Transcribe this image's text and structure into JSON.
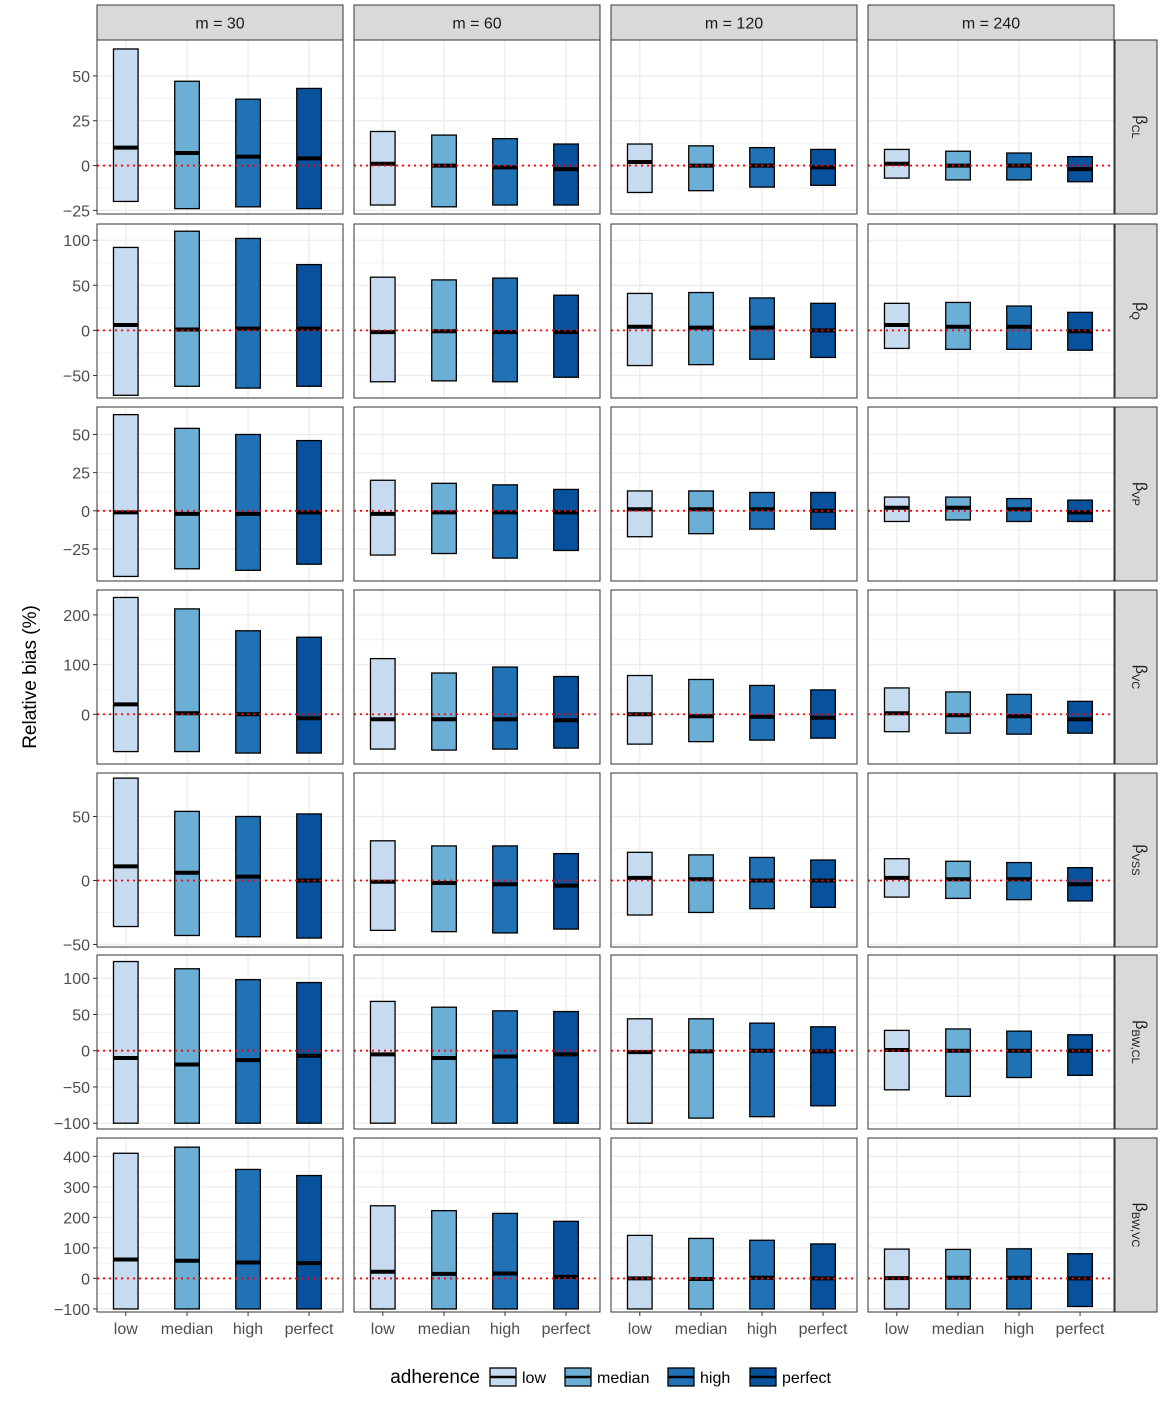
{
  "chart_data": {
    "type": "bar",
    "description_kind": "faceted floating-bar (range) chart with median line",
    "ylabel": "Relative bias (%)",
    "xlabel": "",
    "categories": [
      "low",
      "median",
      "high",
      "perfect"
    ],
    "columns": [
      "m = 30",
      "m = 60",
      "m = 120",
      "m = 240"
    ],
    "reference_line": 0,
    "legend": {
      "title": "adherence",
      "position": "bottom",
      "items": [
        "low",
        "median",
        "high",
        "perfect"
      ]
    },
    "colors": {
      "low": "#c6dbef",
      "median": "#6baed6",
      "high": "#2171b5",
      "perfect": "#08519c",
      "reference": "#ff0000"
    },
    "rows": [
      {
        "label_base": "β",
        "label_sub": "CL",
        "ylim": [
          -27,
          70
        ],
        "yticks": [
          -25,
          0,
          25,
          50
        ],
        "panels": [
          [
            [
              -20,
              10,
              65
            ],
            [
              -24,
              7,
              47
            ],
            [
              -23,
              5,
              37
            ],
            [
              -24,
              4,
              43
            ]
          ],
          [
            [
              -22,
              1,
              19
            ],
            [
              -23,
              0,
              17
            ],
            [
              -22,
              -1,
              15
            ],
            [
              -22,
              -2,
              12
            ]
          ],
          [
            [
              -15,
              2,
              12
            ],
            [
              -14,
              0,
              11
            ],
            [
              -12,
              0,
              10
            ],
            [
              -11,
              -1,
              9
            ]
          ],
          [
            [
              -7,
              1,
              9
            ],
            [
              -8,
              0,
              8
            ],
            [
              -8,
              0,
              7
            ],
            [
              -9,
              -2,
              5
            ]
          ]
        ]
      },
      {
        "label_base": "β",
        "label_sub": "Q",
        "ylim": [
          -75,
          118
        ],
        "yticks": [
          -50,
          0,
          50,
          100
        ],
        "panels": [
          [
            [
              -72,
              6,
              92
            ],
            [
              -62,
              1,
              110
            ],
            [
              -64,
              2,
              102
            ],
            [
              -62,
              2,
              73
            ]
          ],
          [
            [
              -57,
              -2,
              59
            ],
            [
              -56,
              -1,
              56
            ],
            [
              -57,
              -2,
              58
            ],
            [
              -52,
              -2,
              39
            ]
          ],
          [
            [
              -39,
              4,
              41
            ],
            [
              -38,
              3,
              42
            ],
            [
              -32,
              3,
              36
            ],
            [
              -30,
              0,
              30
            ]
          ],
          [
            [
              -20,
              6,
              30
            ],
            [
              -21,
              4,
              31
            ],
            [
              -21,
              4,
              27
            ],
            [
              -22,
              -1,
              20
            ]
          ]
        ]
      },
      {
        "label_base": "β",
        "label_sub": "VP",
        "ylim": [
          -46,
          68
        ],
        "yticks": [
          -25,
          0,
          25,
          50
        ],
        "panels": [
          [
            [
              -43,
              -1,
              63
            ],
            [
              -38,
              -2,
              54
            ],
            [
              -39,
              -2,
              50
            ],
            [
              -35,
              -1,
              46
            ]
          ],
          [
            [
              -29,
              -2,
              20
            ],
            [
              -28,
              -1,
              18
            ],
            [
              -31,
              -1,
              17
            ],
            [
              -26,
              -1,
              14
            ]
          ],
          [
            [
              -17,
              1,
              13
            ],
            [
              -15,
              1,
              13
            ],
            [
              -12,
              1,
              12
            ],
            [
              -12,
              0,
              12
            ]
          ],
          [
            [
              -7,
              2,
              9
            ],
            [
              -6,
              2,
              9
            ],
            [
              -7,
              1,
              8
            ],
            [
              -7,
              -1,
              7
            ]
          ]
        ]
      },
      {
        "label_base": "β",
        "label_sub": "VC",
        "ylim": [
          -100,
          250
        ],
        "yticks": [
          0,
          100,
          200
        ],
        "panels": [
          [
            [
              -75,
              20,
              235
            ],
            [
              -75,
              2,
              212
            ],
            [
              -78,
              0,
              168
            ],
            [
              -78,
              -8,
              155
            ]
          ],
          [
            [
              -70,
              -10,
              112
            ],
            [
              -72,
              -10,
              83
            ],
            [
              -70,
              -10,
              95
            ],
            [
              -68,
              -12,
              76
            ]
          ],
          [
            [
              -60,
              0,
              78
            ],
            [
              -55,
              -4,
              70
            ],
            [
              -52,
              -5,
              58
            ],
            [
              -48,
              -7,
              49
            ]
          ],
          [
            [
              -35,
              2,
              53
            ],
            [
              -38,
              -2,
              45
            ],
            [
              -40,
              -4,
              40
            ],
            [
              -38,
              -10,
              26
            ]
          ]
        ]
      },
      {
        "label_base": "β",
        "label_sub": "VSS",
        "ylim": [
          -52,
          84
        ],
        "yticks": [
          -50,
          0,
          50
        ],
        "panels": [
          [
            [
              -36,
              11,
              80
            ],
            [
              -43,
              6,
              54
            ],
            [
              -44,
              3,
              50
            ],
            [
              -45,
              0,
              52
            ]
          ],
          [
            [
              -39,
              -1,
              31
            ],
            [
              -40,
              -2,
              27
            ],
            [
              -41,
              -3,
              27
            ],
            [
              -38,
              -4,
              21
            ]
          ],
          [
            [
              -27,
              2,
              22
            ],
            [
              -25,
              1,
              20
            ],
            [
              -22,
              0,
              18
            ],
            [
              -21,
              0,
              16
            ]
          ],
          [
            [
              -13,
              2,
              17
            ],
            [
              -14,
              1,
              15
            ],
            [
              -15,
              1,
              14
            ],
            [
              -16,
              -3,
              10
            ]
          ]
        ]
      },
      {
        "label_base": "β",
        "label_sub": "BW,CL",
        "ylim": [
          -108,
          132
        ],
        "yticks": [
          -100,
          -50,
          0,
          50,
          100
        ],
        "panels": [
          [
            [
              -100,
              -10,
              123
            ],
            [
              -100,
              -19,
              113
            ],
            [
              -100,
              -13,
              98
            ],
            [
              -100,
              -7,
              94
            ]
          ],
          [
            [
              -100,
              -5,
              68
            ],
            [
              -100,
              -10,
              60
            ],
            [
              -100,
              -8,
              55
            ],
            [
              -100,
              -5,
              54
            ]
          ],
          [
            [
              -100,
              -2,
              44
            ],
            [
              -93,
              -1,
              44
            ],
            [
              -91,
              0,
              38
            ],
            [
              -76,
              -1,
              33
            ]
          ],
          [
            [
              -54,
              1,
              28
            ],
            [
              -63,
              0,
              30
            ],
            [
              -37,
              0,
              27
            ],
            [
              -34,
              0,
              22
            ]
          ]
        ]
      },
      {
        "label_base": "β",
        "label_sub": "BW,VC",
        "ylim": [
          -110,
          460
        ],
        "yticks": [
          -100,
          0,
          100,
          200,
          300,
          400
        ],
        "panels": [
          [
            [
              -100,
              62,
              410
            ],
            [
              -100,
              58,
              430
            ],
            [
              -100,
              52,
              357
            ],
            [
              -100,
              50,
              337
            ]
          ],
          [
            [
              -100,
              22,
              238
            ],
            [
              -100,
              15,
              222
            ],
            [
              -100,
              16,
              213
            ],
            [
              -100,
              5,
              187
            ]
          ],
          [
            [
              -100,
              0,
              141
            ],
            [
              -100,
              -2,
              131
            ],
            [
              -100,
              2,
              125
            ],
            [
              -100,
              0,
              113
            ]
          ],
          [
            [
              -100,
              1,
              96
            ],
            [
              -100,
              2,
              95
            ],
            [
              -100,
              2,
              97
            ],
            [
              -92,
              0,
              81
            ]
          ]
        ]
      }
    ]
  }
}
